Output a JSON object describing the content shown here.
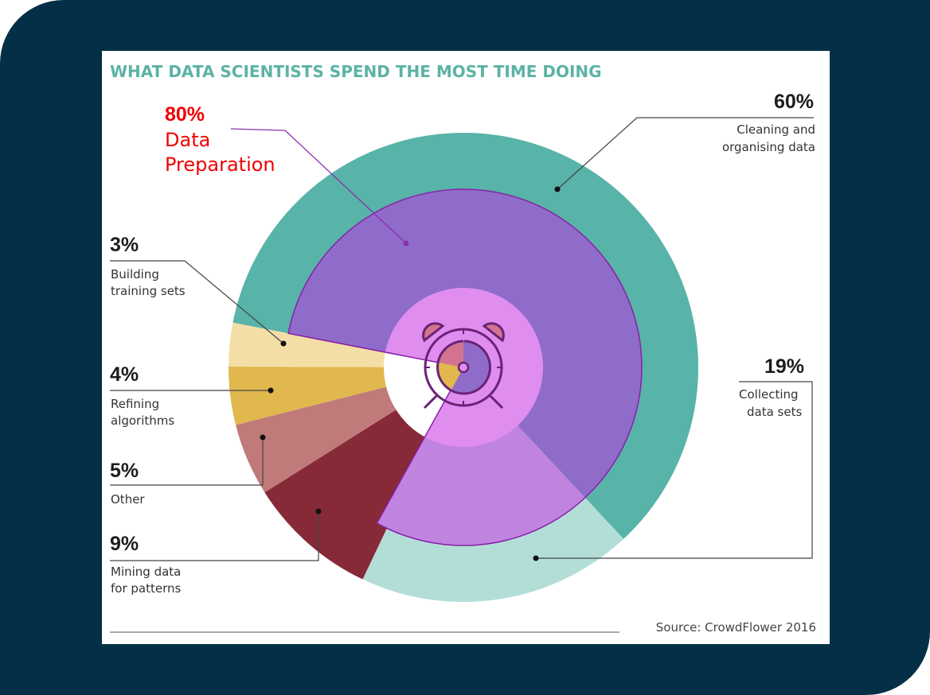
{
  "chart_data": {
    "type": "pie",
    "title": "WHAT DATA SCIENTISTS SPEND THE MOST TIME DOING",
    "source": "Source: CrowdFlower 2016",
    "slices": [
      {
        "percent_label": "60%",
        "label_lines": [
          "Cleaning and",
          "organising data"
        ],
        "value": 60,
        "color": "#58b3a8"
      },
      {
        "percent_label": "19%",
        "label_lines": [
          "Collecting",
          "data sets"
        ],
        "value": 19,
        "color": "#b3ded8"
      },
      {
        "percent_label": "9%",
        "label_lines": [
          "Mining data",
          "for patterns"
        ],
        "value": 9,
        "color": "#862a38"
      },
      {
        "percent_label": "5%",
        "label_lines": [
          "Other"
        ],
        "value": 5,
        "color": "#c17a7a"
      },
      {
        "percent_label": "4%",
        "label_lines": [
          "Refining",
          "algorithms"
        ],
        "value": 4,
        "color": "#e0b84e"
      },
      {
        "percent_label": "3%",
        "label_lines": [
          "Building",
          "training sets"
        ],
        "value": 3,
        "color": "#f3dfa5"
      }
    ],
    "annotation": {
      "percent_label": "80%",
      "label_lines": [
        "Data",
        "Preparation"
      ],
      "value": 80,
      "components": [
        "Cleaning and organising data",
        "Collecting data sets"
      ],
      "colors": [
        "#8f6cc9",
        "#c084e0",
        "#e08df0"
      ],
      "text_color": "#f00000"
    }
  }
}
